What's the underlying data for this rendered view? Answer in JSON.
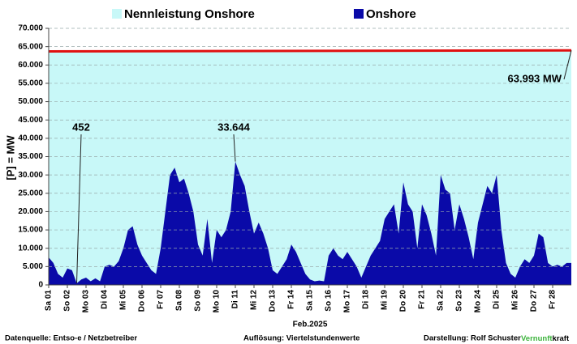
{
  "chart_data": {
    "type": "area",
    "ylabel": "[P] = MW",
    "xlabel": "Feb.2025",
    "xlim": [
      0,
      28
    ],
    "ylim": [
      0,
      70000
    ],
    "yticks": [
      0,
      {
        "value": 5000,
        "label": "5.000"
      },
      {
        "value": 10000,
        "label": "10.000"
      },
      {
        "value": 15000,
        "label": "15.000"
      },
      {
        "value": 20000,
        "label": "20.000"
      },
      {
        "value": 25000,
        "label": "25.000"
      },
      {
        "value": 30000,
        "label": "30.000"
      },
      {
        "value": 35000,
        "label": "35.000"
      },
      {
        "value": 40000,
        "label": "40.000"
      },
      {
        "value": 45000,
        "label": "45.000"
      },
      {
        "value": 50000,
        "label": "50.000"
      },
      {
        "value": 55000,
        "label": "55.000"
      },
      {
        "value": 60000,
        "label": "60.000"
      },
      {
        "value": 65000,
        "label": "65.000"
      },
      {
        "value": 70000,
        "label": "70.000"
      }
    ],
    "xticks": [
      {
        "value": 0,
        "label": "Sa 01"
      },
      {
        "value": 1,
        "label": "So 02"
      },
      {
        "value": 2,
        "label": "Mo 03"
      },
      {
        "value": 3,
        "label": "Di 04"
      },
      {
        "value": 4,
        "label": "Mi 05"
      },
      {
        "value": 5,
        "label": "Do 06"
      },
      {
        "value": 6,
        "label": "Fr 07"
      },
      {
        "value": 7,
        "label": "Sa 08"
      },
      {
        "value": 8,
        "label": "So 09"
      },
      {
        "value": 9,
        "label": "Mo 10"
      },
      {
        "value": 10,
        "label": "Di 11"
      },
      {
        "value": 11,
        "label": "Mi 12"
      },
      {
        "value": 12,
        "label": "Do 13"
      },
      {
        "value": 13,
        "label": "Fr 14"
      },
      {
        "value": 14,
        "label": "Sa 15"
      },
      {
        "value": 15,
        "label": "So 16"
      },
      {
        "value": 16,
        "label": "Mo 17"
      },
      {
        "value": 17,
        "label": "Di 18"
      },
      {
        "value": 18,
        "label": "Mi 19"
      },
      {
        "value": 19,
        "label": "Do 20"
      },
      {
        "value": 20,
        "label": "Fr 21"
      },
      {
        "value": 21,
        "label": "Sa 22"
      },
      {
        "value": 22,
        "label": "So 23"
      },
      {
        "value": 23,
        "label": "Mo 24"
      },
      {
        "value": 24,
        "label": "Di 25"
      },
      {
        "value": 25,
        "label": "Mi 26"
      },
      {
        "value": 26,
        "label": "Do 27"
      },
      {
        "value": 27,
        "label": "Fr 28"
      }
    ],
    "grid": true,
    "series": [
      {
        "name": "Nennleistung Onshore",
        "color": "#c8f8f8",
        "line_color": "#e01010",
        "x": [
          0,
          28
        ],
        "values": [
          63700,
          63993
        ]
      },
      {
        "name": "Onshore",
        "color": "#0a0aa8",
        "x": [
          0,
          0.25,
          0.5,
          0.75,
          1,
          1.25,
          1.5,
          1.75,
          2,
          2.25,
          2.5,
          2.75,
          3,
          3.25,
          3.5,
          3.75,
          4,
          4.25,
          4.5,
          4.75,
          5,
          5.25,
          5.5,
          5.75,
          6,
          6.25,
          6.5,
          6.75,
          7,
          7.25,
          7.5,
          7.75,
          8,
          8.25,
          8.5,
          8.75,
          9,
          9.25,
          9.5,
          9.75,
          10,
          10.25,
          10.5,
          10.75,
          11,
          11.25,
          11.5,
          11.75,
          12,
          12.25,
          12.5,
          12.75,
          13,
          13.25,
          13.5,
          13.75,
          14,
          14.25,
          14.5,
          14.75,
          15,
          15.25,
          15.5,
          15.75,
          16,
          16.25,
          16.5,
          16.75,
          17,
          17.25,
          17.5,
          17.75,
          18,
          18.25,
          18.5,
          18.75,
          19,
          19.25,
          19.5,
          19.75,
          20,
          20.25,
          20.5,
          20.75,
          21,
          21.25,
          21.5,
          21.75,
          22,
          22.25,
          22.5,
          22.75,
          23,
          23.25,
          23.5,
          23.75,
          24,
          24.25,
          24.5,
          24.75,
          25,
          25.25,
          25.5,
          25.75,
          26,
          26.25,
          26.5,
          26.75,
          27,
          27.25,
          27.5,
          27.75,
          28
        ],
        "values": [
          7500,
          6000,
          3000,
          2000,
          4500,
          4000,
          452,
          1500,
          2000,
          1000,
          1800,
          1000,
          5000,
          5500,
          5000,
          6500,
          10000,
          15000,
          16000,
          11000,
          8000,
          6000,
          4000,
          3000,
          10000,
          20000,
          30000,
          32000,
          28000,
          29000,
          25000,
          20000,
          11000,
          8000,
          18000,
          6000,
          15000,
          13000,
          15000,
          20000,
          33644,
          30000,
          27000,
          20000,
          14000,
          17000,
          14000,
          10000,
          4000,
          3000,
          5000,
          7000,
          11000,
          9000,
          6000,
          3000,
          1500,
          1000,
          1200,
          1000,
          8000,
          10000,
          8000,
          7000,
          9000,
          7000,
          5000,
          2000,
          5000,
          8000,
          10000,
          12000,
          18000,
          20000,
          22000,
          14000,
          28000,
          22000,
          20000,
          10000,
          22000,
          19000,
          14000,
          8000,
          30000,
          26000,
          25000,
          15000,
          22000,
          18000,
          13000,
          7000,
          17000,
          22000,
          27000,
          25000,
          30000,
          15000,
          6000,
          3000,
          2000,
          5000,
          7000,
          6000,
          8000,
          14000,
          13000,
          6000,
          5000,
          5500,
          5000,
          6000,
          6000
        ]
      }
    ],
    "annotations": [
      {
        "text": "452",
        "x": 1.5,
        "y": 452
      },
      {
        "text": "33.644",
        "x": 10,
        "y": 33644
      },
      {
        "text": "63.993 MW",
        "x": 28,
        "y": 63993
      }
    ],
    "footer": {
      "source": "Datenquelle:  Entso-e  / Netzbetreiber",
      "resolution": "Auflösung: Viertelstundenwerte",
      "author": "Darstellung:  Rolf Schuster",
      "brand": [
        "Vernunft",
        "kraft"
      ]
    }
  }
}
